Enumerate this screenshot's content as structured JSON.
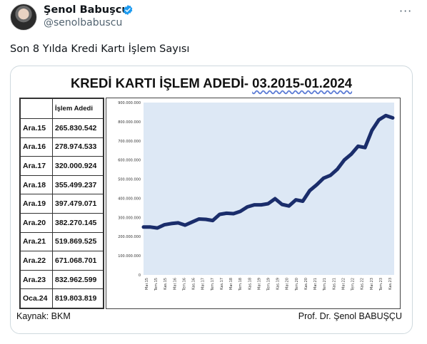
{
  "tweet": {
    "name": "Şenol Babuşcu",
    "handle": "@senolbabuscu",
    "text": "Son 8 Yılda Kredi Kartı İşlem Sayısı",
    "more": "···"
  },
  "image": {
    "title_main": "KREDİ KARTI İŞLEM ADEDİ- ",
    "title_date": "03.2015-01.2024",
    "table_header": "İşlem Adedi",
    "rows": [
      {
        "period": "Ara.15",
        "value": "265.830.542"
      },
      {
        "period": "Ara.16",
        "value": "278.974.533"
      },
      {
        "period": "Ara.17",
        "value": "320.000.924"
      },
      {
        "period": "Ara.18",
        "value": "355.499.237"
      },
      {
        "period": "Ara.19",
        "value": "397.479.071"
      },
      {
        "period": "Ara.20",
        "value": "382.270.145"
      },
      {
        "period": "Ara.21",
        "value": "519.869.525"
      },
      {
        "period": "Ara.22",
        "value": "671.068.701"
      },
      {
        "period": "Ara.23",
        "value": "832.962.599"
      },
      {
        "period": "Oca.24",
        "value": "819.803.819"
      }
    ],
    "source": "Kaynak: BKM",
    "author": "Prof. Dr. Şenol BABUŞÇU"
  },
  "colors": {
    "plot_bg": "#dde8f5",
    "line": "#1a2d6b",
    "verified": "#1d9bf0"
  },
  "chart_data": {
    "type": "line",
    "y_tick_labels": [
      "0",
      "100.000.000",
      "200.000.000",
      "300.000.000",
      "400.000.000",
      "500.000.000",
      "600.000.000",
      "700.000.000",
      "800.000.000",
      "900.000.000"
    ],
    "ylim": [
      0,
      900000000
    ],
    "x_tick_labels": [
      "Mar.15",
      "Tem.15",
      "Kas.15",
      "Mar.16",
      "Tem.16",
      "Kas.16",
      "Mar.17",
      "Tem.17",
      "Kas.17",
      "Mar.18",
      "Tem.18",
      "Kas.18",
      "Mar.19",
      "Tem.19",
      "Kas.19",
      "Mar.20",
      "Tem.20",
      "Kas.20",
      "Mar.21",
      "Tem.21",
      "Kas.21",
      "Mar.22",
      "Tem.22",
      "Kas.22",
      "Mar.23",
      "Tem.23",
      "Kas.23"
    ],
    "grid": false,
    "series": [
      {
        "values": [
          250000000,
          250000000,
          245000000,
          262000000,
          268000000,
          272000000,
          260000000,
          276000000,
          292000000,
          290000000,
          284000000,
          316000000,
          322000000,
          320000000,
          332000000,
          355000000,
          366000000,
          366000000,
          372000000,
          398000000,
          368000000,
          360000000,
          392000000,
          385000000,
          440000000,
          470000000,
          505000000,
          520000000,
          552000000,
          600000000,
          630000000,
          672000000,
          665000000,
          755000000,
          810000000,
          832000000,
          820000000
        ]
      }
    ]
  }
}
